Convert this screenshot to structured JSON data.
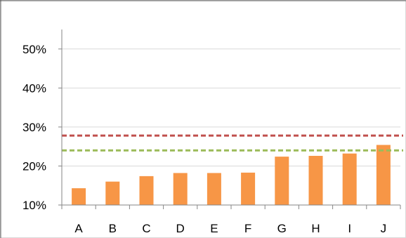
{
  "chart_data": {
    "type": "bar",
    "title": "",
    "xlabel": "",
    "ylabel": "",
    "categories": [
      "A",
      "B",
      "C",
      "D",
      "E",
      "F",
      "G",
      "H",
      "I",
      "J"
    ],
    "series": [
      {
        "values": [
          14.3,
          16.0,
          17.4,
          18.2,
          18.2,
          18.3,
          22.4,
          22.6,
          23.2,
          25.4
        ],
        "color": "#f79646"
      }
    ],
    "reference_lines": [
      {
        "value": 27.8,
        "color": "#c0504d",
        "style": "dashed"
      },
      {
        "value": 24.0,
        "color": "#9bbb59",
        "style": "dashed"
      }
    ],
    "ylim": [
      10,
      55
    ],
    "yticks": [
      10,
      20,
      30,
      40,
      50
    ],
    "ytick_labels": [
      "10%",
      "20%",
      "30%",
      "40%",
      "50%"
    ],
    "grid": true,
    "legend": "none"
  }
}
